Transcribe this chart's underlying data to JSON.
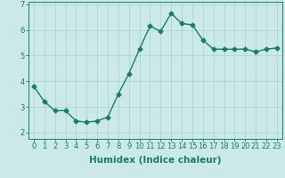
{
  "x": [
    0,
    1,
    2,
    3,
    4,
    5,
    6,
    7,
    8,
    9,
    10,
    11,
    12,
    13,
    14,
    15,
    16,
    17,
    18,
    19,
    20,
    21,
    22,
    23
  ],
  "y": [
    3.8,
    3.2,
    2.85,
    2.85,
    2.45,
    2.4,
    2.45,
    2.6,
    3.5,
    4.3,
    5.25,
    6.15,
    5.95,
    6.65,
    6.25,
    6.2,
    5.6,
    5.25,
    5.25,
    5.25,
    5.25,
    5.15,
    5.25,
    5.3
  ],
  "line_color": "#1a7a6e",
  "marker": "D",
  "marker_size": 2.5,
  "bg_color": "#cce9ea",
  "grid_color": "#aed4d4",
  "axis_color": "#1a7a6e",
  "xlabel": "Humidex (Indice chaleur)",
  "xlabel_fontsize": 7.5,
  "yticks": [
    2,
    3,
    4,
    5,
    6,
    7
  ],
  "xticks": [
    0,
    1,
    2,
    3,
    4,
    5,
    6,
    7,
    8,
    9,
    10,
    11,
    12,
    13,
    14,
    15,
    16,
    17,
    18,
    19,
    20,
    21,
    22,
    23
  ],
  "ylim": [
    1.75,
    7.1
  ],
  "xlim": [
    -0.5,
    23.5
  ],
  "tick_fontsize": 6.0,
  "linewidth": 1.0
}
